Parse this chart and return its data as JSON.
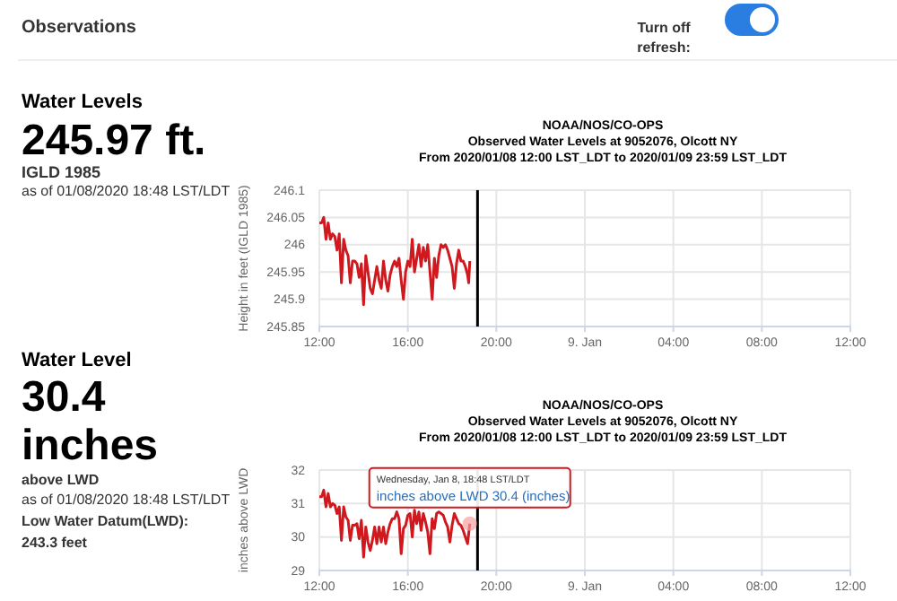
{
  "chart_data": [
    {
      "type": "other",
      "title": "Observations",
      "annotations": [
        "Turn off\nrefresh:"
      ]
    },
    {
      "type": "other",
      "title": "Water Levels",
      "annotations": [
        "245.97 ft.",
        "IGLD 1985",
        "as of 01/08/2020 18:48 LST/LDT"
      ]
    },
    {
      "type": "line",
      "title": "NOAA/NOS/CO-OPS",
      "subtitle": "Observed Water Levels at 9052076, Olcott NY\nFrom 2020/01/08 12:00 LST_LDT to 2020/01/09 23:59 LST_LDT",
      "ylabel": "Height in feet (IGLD 1985)",
      "xlim": [
        "2020-01-08T12:00",
        "2020-01-09T12:00"
      ],
      "xticks": [
        {
          "value": "2020-01-08T12:00",
          "label": "12:00"
        },
        {
          "value": "2020-01-08T16:00",
          "label": "16:00"
        },
        {
          "value": "2020-01-08T20:00",
          "label": "20:00"
        },
        {
          "value": "2020-01-09T00:00",
          "label": "9. Jan"
        },
        {
          "value": "2020-01-09T04:00",
          "label": "04:00"
        },
        {
          "value": "2020-01-09T08:00",
          "label": "08:00"
        },
        {
          "value": "2020-01-09T12:00",
          "label": "12:00"
        }
      ],
      "ylim": [
        245.85,
        246.1
      ],
      "yticks": [
        245.85,
        245.9,
        245.95,
        246,
        246.05,
        246.1
      ],
      "grid": true,
      "ref_lines": [
        {
          "axis": "x",
          "value": "2020-01-08T19:09",
          "color": "#000000"
        }
      ],
      "series": [
        {
          "color": "#d0191f",
          "x": [
            "2020-01-08T12:00",
            "2020-01-08T12:06",
            "2020-01-08T12:12",
            "2020-01-08T12:18",
            "2020-01-08T12:24",
            "2020-01-08T12:30",
            "2020-01-08T12:36",
            "2020-01-08T12:42",
            "2020-01-08T12:48",
            "2020-01-08T12:54",
            "2020-01-08T13:00",
            "2020-01-08T13:06",
            "2020-01-08T13:12",
            "2020-01-08T13:18",
            "2020-01-08T13:24",
            "2020-01-08T13:30",
            "2020-01-08T13:36",
            "2020-01-08T13:42",
            "2020-01-08T13:48",
            "2020-01-08T13:54",
            "2020-01-08T14:00",
            "2020-01-08T14:06",
            "2020-01-08T14:12",
            "2020-01-08T14:18",
            "2020-01-08T14:24",
            "2020-01-08T14:30",
            "2020-01-08T14:36",
            "2020-01-08T14:42",
            "2020-01-08T14:48",
            "2020-01-08T14:54",
            "2020-01-08T15:00",
            "2020-01-08T15:06",
            "2020-01-08T15:12",
            "2020-01-08T15:18",
            "2020-01-08T15:24",
            "2020-01-08T15:30",
            "2020-01-08T15:36",
            "2020-01-08T15:42",
            "2020-01-08T15:48",
            "2020-01-08T15:54",
            "2020-01-08T16:00",
            "2020-01-08T16:06",
            "2020-01-08T16:12",
            "2020-01-08T16:18",
            "2020-01-08T16:24",
            "2020-01-08T16:30",
            "2020-01-08T16:36",
            "2020-01-08T16:42",
            "2020-01-08T16:48",
            "2020-01-08T16:54",
            "2020-01-08T17:00",
            "2020-01-08T17:06",
            "2020-01-08T17:12",
            "2020-01-08T17:18",
            "2020-01-08T17:24",
            "2020-01-08T17:30",
            "2020-01-08T17:36",
            "2020-01-08T17:42",
            "2020-01-08T17:48",
            "2020-01-08T17:54",
            "2020-01-08T18:00",
            "2020-01-08T18:06",
            "2020-01-08T18:12",
            "2020-01-08T18:18",
            "2020-01-08T18:24",
            "2020-01-08T18:30",
            "2020-01-08T18:36",
            "2020-01-08T18:42",
            "2020-01-08T18:45",
            "2020-01-08T18:48"
          ],
          "values": [
            246.04,
            246.04,
            246.05,
            246.01,
            246.04,
            246.01,
            246.02,
            246.015,
            245.99,
            246.02,
            245.93,
            246.01,
            245.99,
            245.98,
            245.93,
            245.97,
            245.97,
            245.965,
            245.94,
            245.965,
            245.89,
            245.98,
            245.95,
            245.92,
            245.91,
            245.935,
            245.96,
            245.935,
            245.92,
            245.97,
            245.935,
            245.915,
            245.945,
            245.96,
            245.97,
            245.96,
            245.975,
            245.935,
            245.9,
            245.95,
            245.97,
            245.96,
            246.01,
            245.95,
            245.975,
            246,
            245.96,
            245.995,
            245.97,
            246,
            245.95,
            245.9,
            245.975,
            245.94,
            245.98,
            246,
            245.995,
            246,
            245.99,
            245.975,
            245.96,
            245.92,
            245.965,
            245.99,
            245.97,
            245.97,
            245.96,
            245.945,
            245.93,
            245.97
          ]
        }
      ]
    },
    {
      "type": "other",
      "title": "Water Level",
      "annotations": [
        "30.4",
        "inches",
        "above LWD",
        "as of 01/08/2020 18:48 LST/LDT",
        "Low Water Datum(LWD):",
        "243.3 feet"
      ]
    },
    {
      "type": "line",
      "title": "NOAA/NOS/CO-OPS",
      "subtitle": "Observed Water Levels at 9052076, Olcott NY\nFrom 2020/01/08 12:00 LST_LDT to 2020/01/09 23:59 LST_LDT",
      "ylabel": "inches above LWD",
      "xlim": [
        "2020-01-08T12:00",
        "2020-01-09T12:00"
      ],
      "xticks": [
        {
          "value": "2020-01-08T12:00",
          "label": "12:00"
        },
        {
          "value": "2020-01-08T16:00",
          "label": "16:00"
        },
        {
          "value": "2020-01-08T20:00",
          "label": "20:00"
        },
        {
          "value": "2020-01-09T00:00",
          "label": "9. Jan"
        },
        {
          "value": "2020-01-09T04:00",
          "label": "04:00"
        },
        {
          "value": "2020-01-09T08:00",
          "label": "08:00"
        },
        {
          "value": "2020-01-09T12:00",
          "label": "12:00"
        }
      ],
      "ylim": [
        29,
        32
      ],
      "yticks": [
        29,
        30,
        31,
        32
      ],
      "grid": true,
      "ref_lines": [
        {
          "axis": "x",
          "value": "2020-01-08T19:09",
          "color": "#000000"
        }
      ],
      "annotations": [
        {
          "text": "Wednesday, Jan 8, 18:48 LST/LDT\ninches above LWD 30.4 (inches)",
          "x": "2020-01-08T18:48",
          "y": 30.4
        }
      ],
      "series": [
        {
          "color": "#d0191f",
          "x": [
            "2020-01-08T12:00",
            "2020-01-08T12:06",
            "2020-01-08T12:12",
            "2020-01-08T12:18",
            "2020-01-08T12:24",
            "2020-01-08T12:30",
            "2020-01-08T12:36",
            "2020-01-08T12:42",
            "2020-01-08T12:48",
            "2020-01-08T12:54",
            "2020-01-08T13:00",
            "2020-01-08T13:06",
            "2020-01-08T13:12",
            "2020-01-08T13:18",
            "2020-01-08T13:24",
            "2020-01-08T13:30",
            "2020-01-08T13:36",
            "2020-01-08T13:42",
            "2020-01-08T13:48",
            "2020-01-08T13:54",
            "2020-01-08T14:00",
            "2020-01-08T14:06",
            "2020-01-08T14:12",
            "2020-01-08T14:18",
            "2020-01-08T14:24",
            "2020-01-08T14:30",
            "2020-01-08T14:36",
            "2020-01-08T14:42",
            "2020-01-08T14:48",
            "2020-01-08T14:54",
            "2020-01-08T15:00",
            "2020-01-08T15:06",
            "2020-01-08T15:12",
            "2020-01-08T15:18",
            "2020-01-08T15:24",
            "2020-01-08T15:30",
            "2020-01-08T15:36",
            "2020-01-08T15:42",
            "2020-01-08T15:48",
            "2020-01-08T15:54",
            "2020-01-08T16:00",
            "2020-01-08T16:06",
            "2020-01-08T16:12",
            "2020-01-08T16:18",
            "2020-01-08T16:24",
            "2020-01-08T16:30",
            "2020-01-08T16:36",
            "2020-01-08T16:42",
            "2020-01-08T16:48",
            "2020-01-08T16:54",
            "2020-01-08T17:00",
            "2020-01-08T17:06",
            "2020-01-08T17:12",
            "2020-01-08T17:18",
            "2020-01-08T17:24",
            "2020-01-08T17:30",
            "2020-01-08T17:36",
            "2020-01-08T17:42",
            "2020-01-08T17:48",
            "2020-01-08T17:54",
            "2020-01-08T18:00",
            "2020-01-08T18:06",
            "2020-01-08T18:12",
            "2020-01-08T18:18",
            "2020-01-08T18:24",
            "2020-01-08T18:30",
            "2020-01-08T18:36",
            "2020-01-08T18:42",
            "2020-01-08T18:48"
          ],
          "values": [
            31.2,
            31.2,
            31.4,
            30.9,
            31.3,
            30.9,
            31,
            30.95,
            30.7,
            30.9,
            29.9,
            30.9,
            30.6,
            30.5,
            29.9,
            30.35,
            30.35,
            30.4,
            29.95,
            30.5,
            29.4,
            30.3,
            29.85,
            29.6,
            29.9,
            30.3,
            29.8,
            30.3,
            29.85,
            30.3,
            29.8,
            30.15,
            30.4,
            30.55,
            30.55,
            30.75,
            30.55,
            29.5,
            30.25,
            30.35,
            30.65,
            30.7,
            30,
            30.8,
            30.4,
            30.75,
            30.2,
            30.7,
            30.45,
            30.15,
            29.5,
            30.55,
            30.25,
            30.7,
            30.75,
            30.7,
            30.65,
            30.45,
            30.3,
            29.85,
            30.35,
            30.7,
            30.55,
            30.4,
            30.35,
            30.2,
            30,
            29.8,
            30.4
          ]
        }
      ]
    }
  ]
}
